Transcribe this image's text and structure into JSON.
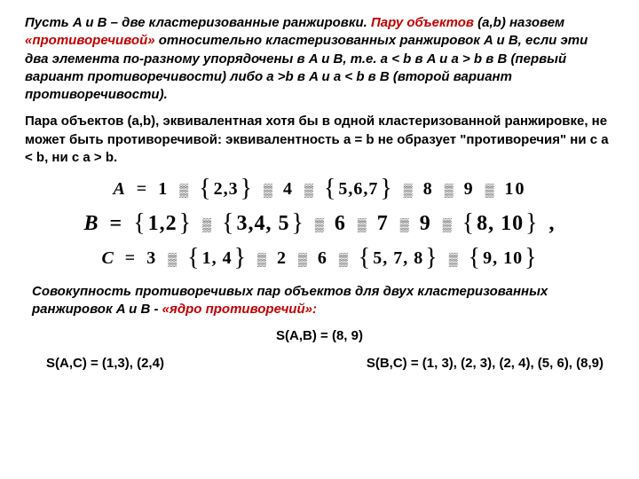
{
  "p1": {
    "t1": "Пусть A и B – две кластеризованные ранжировки. ",
    "t2_hl": "Пару объектов",
    "t3": " (a,b) назовем  ",
    "t4_hl": "«противоречивой»",
    "t5": " относительно кластеризованных ранжировок A и B, если эти два элемента по-разному упорядочены в A и B, т.е. a < b в A и a > b в B (первый вариант противоречивости) либо a >b в A и  a < b в B (второй вариант противоречивости)."
  },
  "p2": "Пара объектов (a,b), эквивалентная хотя бы в одной кластеризованной ранжировке, не может быть противоречивой: эквивалентность a = b не образует \"противоречия\" ни с a < b, ни с a > b.",
  "formulas": {
    "A": {
      "label": "A",
      "items": [
        "1",
        "{2,3}",
        "4",
        "{5,6,7}",
        "8",
        "9",
        "10"
      ]
    },
    "B": {
      "label": "B",
      "items": [
        "{1,2}",
        "{ 3,4, 5}",
        "6",
        "7",
        "9",
        "{8, 10}"
      ],
      "trailing_comma": ","
    },
    "C": {
      "label": "C",
      "items": [
        "3",
        "{1, 4}",
        "2",
        "6",
        "{5, 7, 8}",
        "{9, 10}"
      ]
    }
  },
  "p3": {
    "t1": "Совокупность противоречивых пар объектов для двух кластеризованных ранжировок A и B - ",
    "t2_hl": "«ядро противоречий»:"
  },
  "results": {
    "sab": "S(A,B) = (8, 9)",
    "sac": "S(A,C) = (1,3), (2,4)",
    "sbc": "S(B,C) = (1, 3), (2, 3), (2, 4), (5, 6), (8,9)"
  },
  "colors": {
    "highlight": "#c00000",
    "text": "#000000",
    "background": "#ffffff"
  }
}
